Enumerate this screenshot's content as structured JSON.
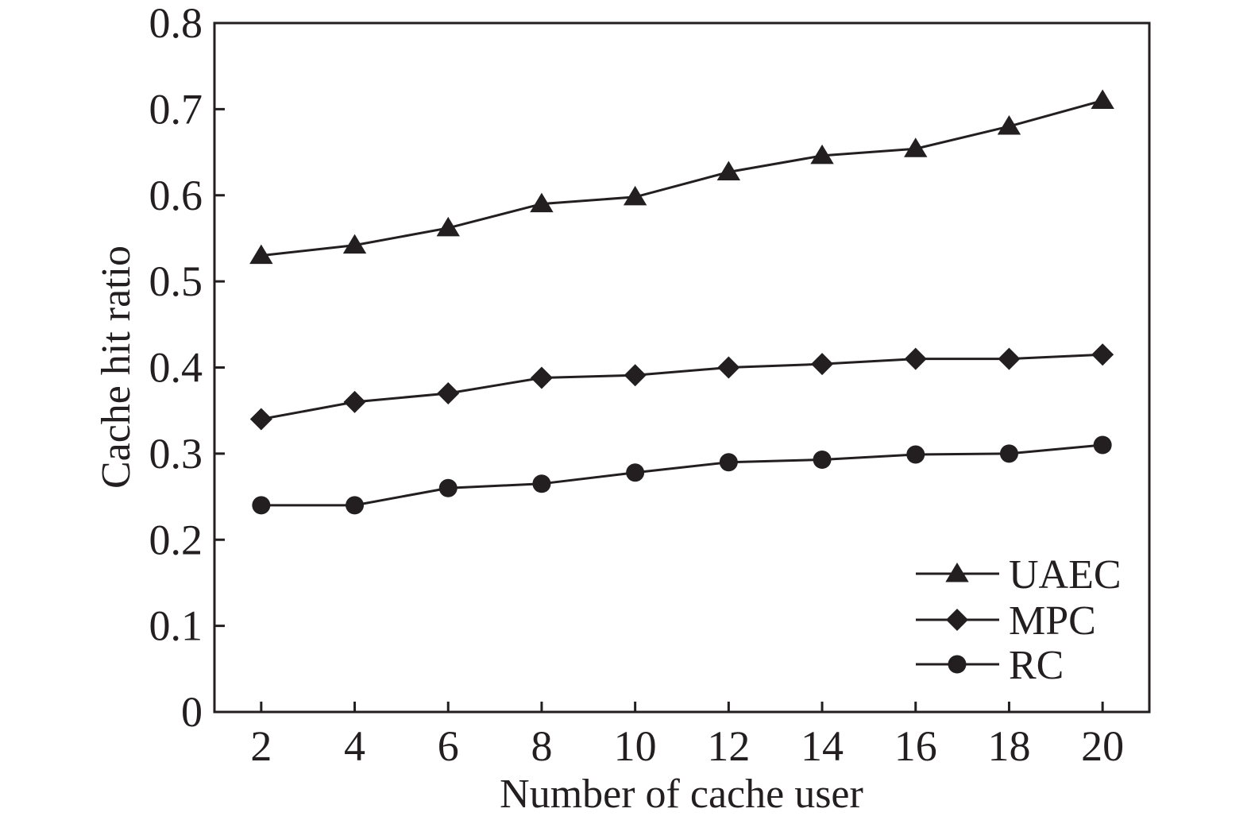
{
  "chart_data": {
    "type": "line",
    "xlabel": "Number of cache user",
    "ylabel": "Cache hit ratio",
    "x": [
      2,
      4,
      6,
      8,
      10,
      12,
      14,
      16,
      18,
      20
    ],
    "xlim": [
      1,
      21
    ],
    "ylim": [
      0,
      0.8
    ],
    "x_ticks": [
      "2",
      "4",
      "6",
      "8",
      "10",
      "12",
      "14",
      "16",
      "18",
      "20"
    ],
    "y_ticks": [
      "0",
      "0.1",
      "0.2",
      "0.3",
      "0.4",
      "0.5",
      "0.6",
      "0.7",
      "0.8"
    ],
    "grid": false,
    "legend_position": "bottom-right",
    "series": [
      {
        "name": "UAEC",
        "marker": "triangle",
        "values": [
          0.53,
          0.542,
          0.562,
          0.59,
          0.598,
          0.627,
          0.646,
          0.654,
          0.68,
          0.71
        ]
      },
      {
        "name": "MPC",
        "marker": "diamond",
        "values": [
          0.34,
          0.36,
          0.37,
          0.388,
          0.391,
          0.4,
          0.404,
          0.41,
          0.41,
          0.415
        ]
      },
      {
        "name": "RC",
        "marker": "circle",
        "values": [
          0.24,
          0.24,
          0.26,
          0.265,
          0.278,
          0.29,
          0.293,
          0.299,
          0.3,
          0.31
        ]
      }
    ],
    "colors": {
      "ink": "#231f20",
      "background": "#ffffff"
    }
  }
}
